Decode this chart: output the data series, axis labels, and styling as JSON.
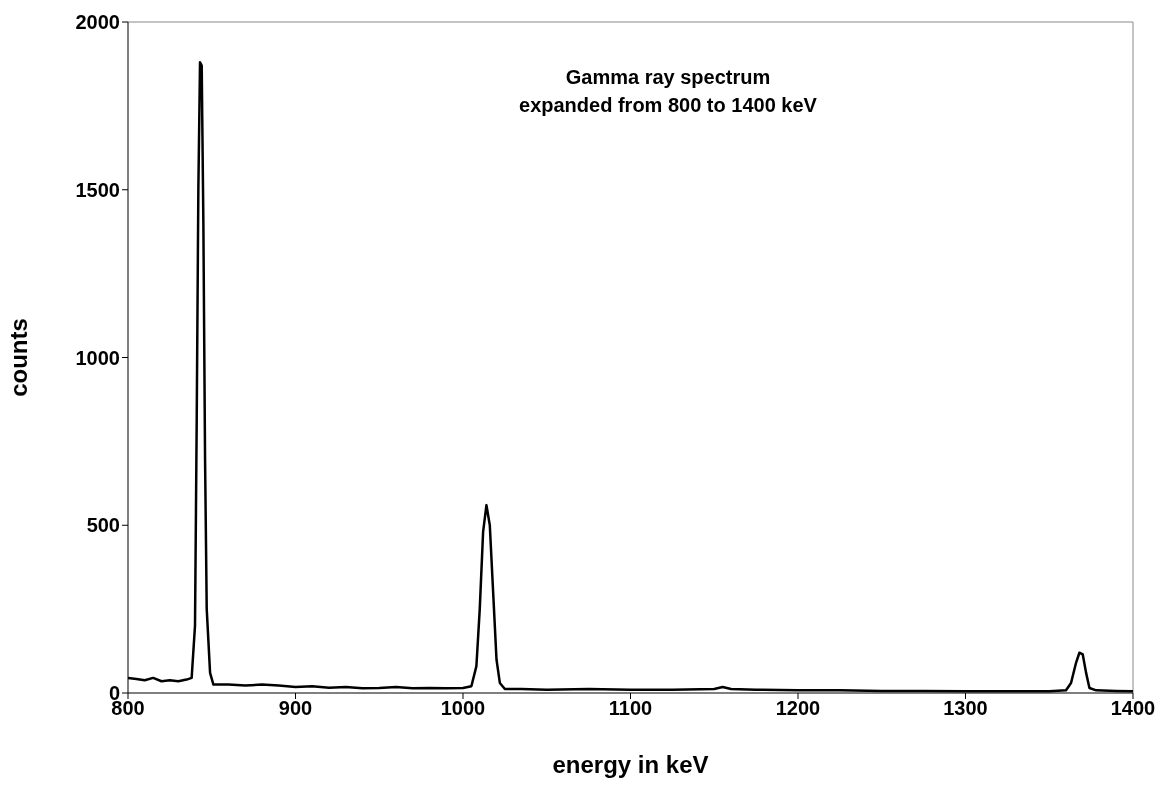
{
  "chart_data": {
    "type": "line",
    "title": "Gamma ray spectrum\nexpanded from 800 to 1400 keV",
    "xlabel": "energy in keV",
    "ylabel": "counts",
    "x": [
      800,
      805,
      810,
      815,
      820,
      825,
      830,
      835,
      838,
      840,
      841,
      842,
      843,
      844,
      845,
      846,
      847,
      849,
      851,
      860,
      870,
      880,
      890,
      900,
      910,
      920,
      930,
      940,
      950,
      960,
      970,
      980,
      990,
      1000,
      1005,
      1008,
      1010,
      1012,
      1014,
      1016,
      1018,
      1020,
      1022,
      1025,
      1035,
      1050,
      1075,
      1100,
      1125,
      1150,
      1155,
      1160,
      1175,
      1200,
      1225,
      1250,
      1275,
      1300,
      1325,
      1350,
      1360,
      1363,
      1366,
      1368,
      1370,
      1372,
      1374,
      1378,
      1390,
      1400
    ],
    "series": [
      {
        "color": "#000000",
        "values": [
          45,
          42,
          38,
          45,
          35,
          38,
          35,
          40,
          45,
          200,
          800,
          1500,
          1880,
          1870,
          1400,
          700,
          250,
          60,
          25,
          25,
          22,
          25,
          22,
          18,
          20,
          16,
          18,
          14,
          15,
          18,
          14,
          15,
          14,
          15,
          20,
          80,
          250,
          480,
          560,
          500,
          300,
          100,
          30,
          12,
          12,
          10,
          12,
          10,
          10,
          12,
          18,
          12,
          10,
          8,
          8,
          6,
          6,
          5,
          5,
          5,
          8,
          30,
          90,
          120,
          115,
          60,
          15,
          8,
          6,
          5
        ]
      }
    ],
    "xlim": [
      800,
      1400
    ],
    "xticks": [
      800,
      900,
      1000,
      1100,
      1200,
      1300,
      1400
    ],
    "ylim": [
      0,
      2000
    ],
    "yticks": [
      0,
      500,
      1000,
      1500,
      2000
    ],
    "grid": false,
    "marker": "none",
    "line_style": "solid"
  }
}
